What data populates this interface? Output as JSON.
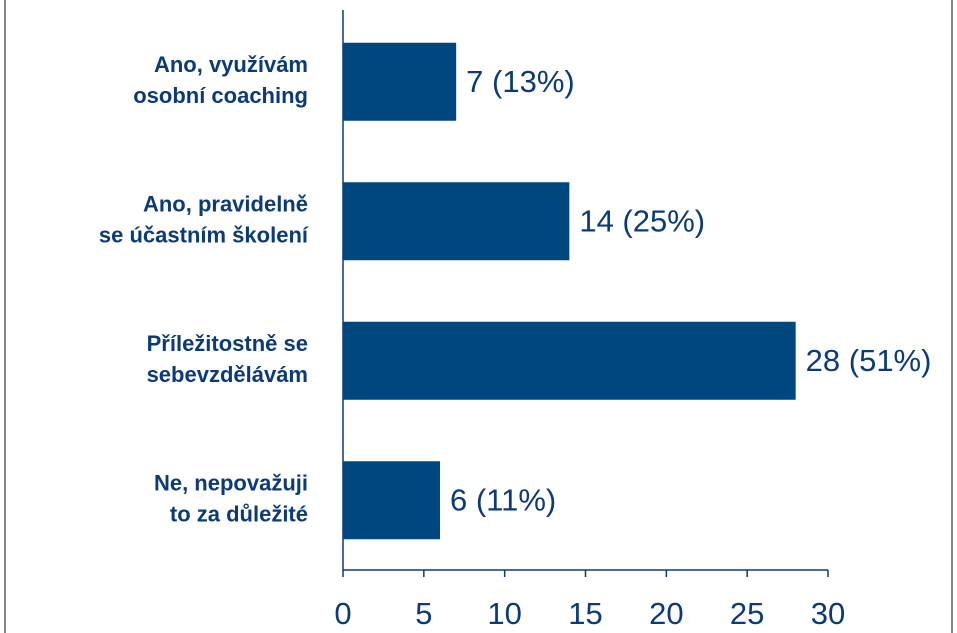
{
  "chart_data": {
    "type": "bar",
    "orientation": "horizontal",
    "categories": [
      [
        "Ano, využívám",
        "osobní coaching"
      ],
      [
        "Ano, pravidelně",
        "se účastním školení"
      ],
      [
        "Příležitostně se",
        "sebevzdělávám"
      ],
      [
        "Ne, nepovažuji",
        "to za důležité"
      ]
    ],
    "values": [
      7,
      14,
      28,
      6
    ],
    "value_labels": [
      "7 (13%)",
      "14 (25%)",
      "28 (51%)",
      "6 (11%)"
    ],
    "color": "#00467f",
    "xlim": [
      0,
      30
    ],
    "xticks": [
      0,
      5,
      10,
      15,
      20,
      25,
      30
    ]
  }
}
